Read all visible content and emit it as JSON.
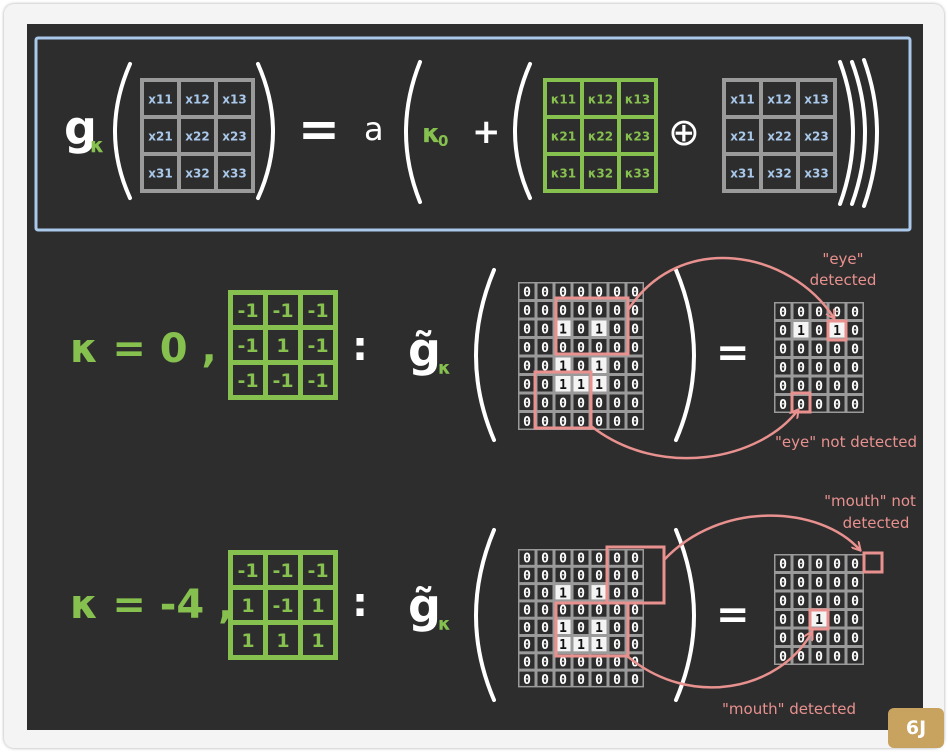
{
  "colors": {
    "board": "#2d2d2d",
    "frame_blue": "#a9c8ea",
    "green": "#86c04e",
    "gray": "#9a9a9a",
    "blue_text": "#a9c8ea",
    "white": "#ffffff",
    "pink": "#e8918f",
    "badge": "#c8a25f"
  },
  "formula": {
    "g": "g",
    "kappa": "κ",
    "equals": "=",
    "a": "a",
    "kappa0": "κ",
    "sub0": "0",
    "plus": "+",
    "oplus": "⊕",
    "x_matrix": [
      [
        "x11",
        "x12",
        "x13"
      ],
      [
        "x21",
        "x22",
        "x23"
      ],
      [
        "x31",
        "x32",
        "x33"
      ]
    ],
    "k_matrix": [
      [
        "κ11",
        "κ12",
        "κ13"
      ],
      [
        "κ21",
        "κ22",
        "κ23"
      ],
      [
        "κ31",
        "κ32",
        "κ33"
      ]
    ]
  },
  "example1": {
    "kappa_label": "κ = 0 ,",
    "kernel": [
      [
        "-1",
        "-1",
        "-1"
      ],
      [
        "-1",
        "1",
        "-1"
      ],
      [
        "-1",
        "-1",
        "-1"
      ]
    ],
    "colon": ":",
    "g_tilde": "g̃",
    "equals": "=",
    "input": [
      [
        "0",
        "0",
        "0",
        "0",
        "0",
        "0",
        "0"
      ],
      [
        "0",
        "0",
        "0",
        "0",
        "0",
        "0",
        "0"
      ],
      [
        "0",
        "0",
        "1",
        "0",
        "1",
        "0",
        "0"
      ],
      [
        "0",
        "0",
        "0",
        "0",
        "0",
        "0",
        "0"
      ],
      [
        "0",
        "0",
        "1",
        "0",
        "1",
        "0",
        "0"
      ],
      [
        "0",
        "0",
        "1",
        "1",
        "1",
        "0",
        "0"
      ],
      [
        "0",
        "0",
        "0",
        "0",
        "0",
        "0",
        "0"
      ],
      [
        "0",
        "0",
        "0",
        "0",
        "0",
        "0",
        "0"
      ]
    ],
    "output": [
      [
        "0",
        "0",
        "0",
        "0",
        "0"
      ],
      [
        "0",
        "1",
        "0",
        "1",
        "0"
      ],
      [
        "0",
        "0",
        "0",
        "0",
        "0"
      ],
      [
        "0",
        "0",
        "0",
        "0",
        "0"
      ],
      [
        "0",
        "0",
        "0",
        "0",
        "0"
      ],
      [
        "0",
        "0",
        "0",
        "0",
        "0"
      ]
    ],
    "note_top_1": "\"eye\"",
    "note_top_2": "detected",
    "note_bottom": "\"eye\" not detected"
  },
  "example2": {
    "kappa_label": "κ = -4 ,",
    "kernel": [
      [
        "-1",
        "-1",
        "-1"
      ],
      [
        "1",
        "-1",
        "1"
      ],
      [
        "1",
        "1",
        "1"
      ]
    ],
    "colon": ":",
    "g_tilde": "g̃",
    "equals": "=",
    "input": [
      [
        "0",
        "0",
        "0",
        "0",
        "0",
        "0",
        "0"
      ],
      [
        "0",
        "0",
        "0",
        "0",
        "0",
        "0",
        "0"
      ],
      [
        "0",
        "0",
        "1",
        "0",
        "1",
        "0",
        "0"
      ],
      [
        "0",
        "0",
        "0",
        "0",
        "0",
        "0",
        "0"
      ],
      [
        "0",
        "0",
        "1",
        "0",
        "1",
        "0",
        "0"
      ],
      [
        "0",
        "0",
        "1",
        "1",
        "1",
        "0",
        "0"
      ],
      [
        "0",
        "0",
        "0",
        "0",
        "0",
        "0",
        "0"
      ],
      [
        "0",
        "0",
        "0",
        "0",
        "0",
        "0",
        "0"
      ]
    ],
    "output": [
      [
        "0",
        "0",
        "0",
        "0",
        "0"
      ],
      [
        "0",
        "0",
        "0",
        "0",
        "0"
      ],
      [
        "0",
        "0",
        "0",
        "0",
        "0"
      ],
      [
        "0",
        "0",
        "1",
        "0",
        "0"
      ],
      [
        "0",
        "0",
        "0",
        "0",
        "0"
      ],
      [
        "0",
        "0",
        "0",
        "0",
        "0"
      ]
    ],
    "note_top_1": "\"mouth\" not",
    "note_top_2": "detected",
    "note_bottom": "\"mouth\" detected"
  },
  "badge": "6J"
}
